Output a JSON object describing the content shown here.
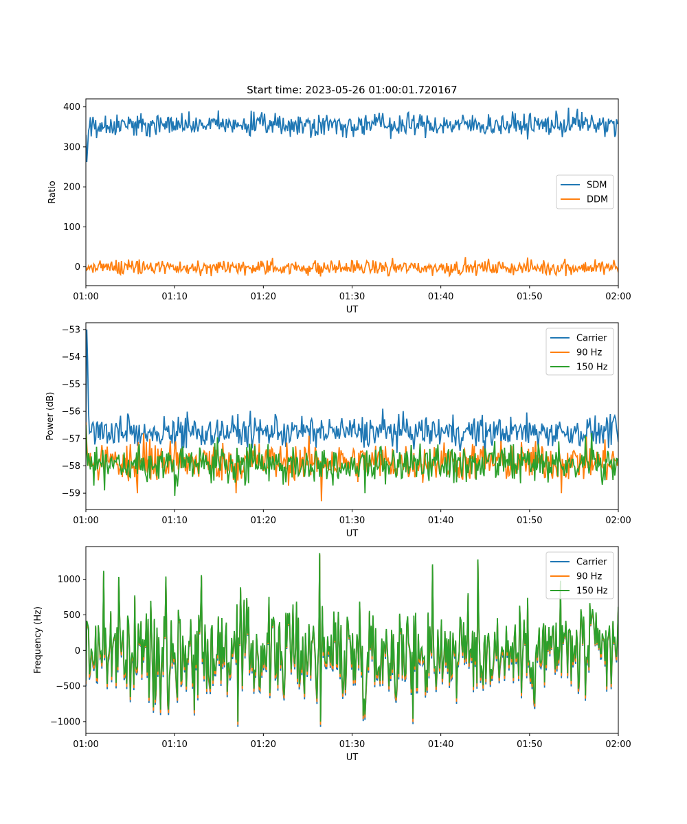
{
  "figure": {
    "title": "Start time: 2023-05-26 01:00:01.720167"
  },
  "chart_data": [
    {
      "type": "line",
      "title": "Start time: 2023-05-26 01:00:01.720167",
      "xlabel": "UT",
      "ylabel": "Ratio",
      "x_ticks": [
        "01:00",
        "01:10",
        "01:20",
        "01:30",
        "01:40",
        "01:50",
        "02:00"
      ],
      "x_range_minutes": [
        0,
        60
      ],
      "y_ticks": [
        0,
        100,
        200,
        300,
        400
      ],
      "ylim": [
        -47,
        420
      ],
      "legend_position": "center-right",
      "series": [
        {
          "name": "SDM",
          "color": "#1f77b4",
          "base": 355,
          "noise": 14,
          "start_values": [
            330,
            262,
            300,
            340,
            350
          ],
          "peaks": [
            [
              18.9,
              388
            ],
            [
              26.2,
              380
            ],
            [
              33.1,
              385
            ],
            [
              54.4,
              398
            ],
            [
              55.4,
              395
            ]
          ],
          "troughs": [
            [
              34.4,
              320
            ],
            [
              59.6,
              325
            ],
            [
              1.2,
              322
            ]
          ]
        },
        {
          "name": "DDM",
          "color": "#ff7f0e",
          "base": -2,
          "noise": 9,
          "start_values": [
            0,
            -8,
            -5,
            2
          ],
          "peaks": [
            [
              21.0,
              22
            ],
            [
              34.6,
              22
            ],
            [
              54.0,
              20
            ],
            [
              57.4,
              19
            ]
          ],
          "troughs": [
            [
              17.9,
              -22
            ],
            [
              26.4,
              -24
            ],
            [
              34.2,
              -22
            ],
            [
              54.1,
              -23
            ]
          ]
        }
      ]
    },
    {
      "type": "line",
      "xlabel": "UT",
      "ylabel": "Power (dB)",
      "x_ticks": [
        "01:00",
        "01:10",
        "01:20",
        "01:30",
        "01:40",
        "01:50",
        "02:00"
      ],
      "x_range_minutes": [
        0,
        60
      ],
      "y_ticks": [
        -59,
        -58,
        -57,
        -56,
        -55,
        -54,
        -53
      ],
      "y_tick_labels": [
        "−59",
        "−58",
        "−57",
        "−56",
        "−55",
        "−54",
        "−53"
      ],
      "ylim": [
        -59.6,
        -52.75
      ],
      "legend_position": "top-right",
      "series": [
        {
          "name": "Carrier",
          "color": "#1f77b4",
          "base": -56.75,
          "noise": 0.28,
          "start_values": [
            -56.5,
            -53.0,
            -54.2,
            -56.0,
            -56.8
          ],
          "peaks": [
            [
              33.5,
              -55.9
            ],
            [
              17.1,
              -56.1
            ],
            [
              21.3,
              -56.1
            ],
            [
              59.1,
              -56.1
            ]
          ],
          "troughs": [
            [
              45.0,
              -57.8
            ]
          ]
        },
        {
          "name": "90 Hz",
          "color": "#ff7f0e",
          "base": -57.85,
          "noise": 0.35,
          "start_values": [
            -56.4,
            -57.2,
            -57.8
          ],
          "peaks": [
            [
              10.1,
              -57.1
            ],
            [
              19.0,
              -57.2
            ]
          ],
          "troughs": [
            [
              26.5,
              -59.3
            ],
            [
              53.6,
              -59.0
            ],
            [
              5.8,
              -59.0
            ],
            [
              16.9,
              -59.0
            ]
          ]
        },
        {
          "name": "150 Hz",
          "color": "#2ca02c",
          "base": -57.95,
          "noise": 0.33,
          "start_values": [
            -56.5,
            -57.5,
            -58.0
          ],
          "peaks": [
            [
              56.3,
              -56.9
            ],
            [
              57.0,
              -56.8
            ],
            [
              20.5,
              -57.2
            ]
          ],
          "troughs": [
            [
              10.0,
              -59.1
            ],
            [
              2.1,
              -58.9
            ],
            [
              31.5,
              -59.0
            ]
          ]
        }
      ]
    },
    {
      "type": "line",
      "xlabel": "UT",
      "ylabel": "Frequency (Hz)",
      "x_ticks": [
        "01:00",
        "01:10",
        "01:20",
        "01:30",
        "01:40",
        "01:50",
        "02:00"
      ],
      "x_range_minutes": [
        0,
        60
      ],
      "y_ticks": [
        -1000,
        -500,
        0,
        500,
        1000
      ],
      "y_tick_labels": [
        "−1000",
        "−500",
        "0",
        "500",
        "1000"
      ],
      "ylim": [
        -1165,
        1460
      ],
      "legend_position": "top-right",
      "series": [
        {
          "name": "Carrier",
          "color": "#1f77b4",
          "offset": -75
        },
        {
          "name": "90 Hz",
          "color": "#ff7f0e",
          "offset": -45
        },
        {
          "name": "150 Hz",
          "color": "#2ca02c",
          "offset": 0
        }
      ],
      "shared_signal": {
        "noise": 330,
        "peaks": [
          [
            26.3,
            1370
          ],
          [
            2.0,
            1120
          ],
          [
            39.1,
            1210
          ],
          [
            44.2,
            1280
          ],
          [
            13.0,
            1060
          ],
          [
            9.0,
            1040
          ],
          [
            53.5,
            980
          ]
        ],
        "troughs": [
          [
            26.4,
            -1000
          ],
          [
            17.1,
            -1000
          ],
          [
            36.9,
            -960
          ],
          [
            7.6,
            -800
          ],
          [
            31.5,
            -900
          ]
        ]
      }
    }
  ]
}
